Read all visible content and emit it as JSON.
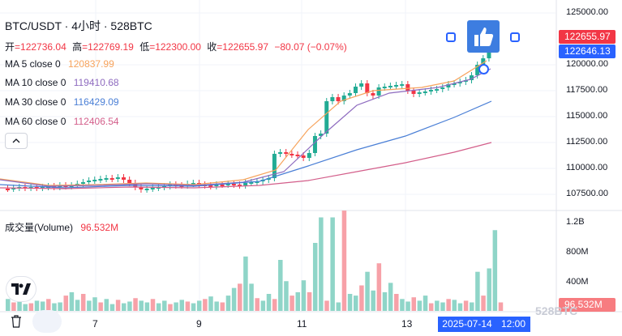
{
  "header": {
    "title": "BTC/USDT · 4小时 · 528BTC",
    "ohlc": [
      {
        "key": "开",
        "value": "=122736.04"
      },
      {
        "key": "高",
        "value": "=122769.19"
      },
      {
        "key": "低",
        "value": "=122300.00"
      },
      {
        "key": "收",
        "value": "=122655.97"
      },
      {
        "key": "",
        "value": "−80.07 (−0.07%)"
      }
    ]
  },
  "indicators": [
    {
      "label": "MA 5 close 0",
      "value": "120837.99",
      "color": "#f7a35c"
    },
    {
      "label": "MA 10 close 0",
      "value": "119410.68",
      "color": "#8e6bbf"
    },
    {
      "label": "MA 30 close 0",
      "value": "116429.09",
      "color": "#4a7fd6"
    },
    {
      "label": "MA 60 close 0",
      "value": "112406.54",
      "color": "#d35e8a"
    }
  ],
  "volume_legend": {
    "label": "成交量(Volume)",
    "value": "96.532M",
    "color": "#f23645"
  },
  "price_axis": [
    "125000.00",
    "120000.00",
    "117500.00",
    "115000.00",
    "112500.00",
    "110000.00",
    "107500.00"
  ],
  "price_tags": [
    {
      "value": "122655.97",
      "color": "#f23645"
    },
    {
      "value": "122646.13",
      "color": "#2962ff"
    }
  ],
  "volume_axis": [
    "1.2B",
    "800M",
    "400M"
  ],
  "volume_tag": {
    "value": "96.532M",
    "color": "#f77c80"
  },
  "time_axis": [
    "7",
    "9",
    "11",
    "13"
  ],
  "crosshair": {
    "date": "2025-07-14",
    "time": "12:00"
  },
  "colors": {
    "up": "#22ab94",
    "down": "#f23645",
    "vol_up": "#8fd5c8",
    "vol_down": "#f7a1a8",
    "grid": "#f0f3fa"
  },
  "icons": {
    "collapse": "chevron-up-icon",
    "logo": "tradingview-logo",
    "trash": "trash-icon",
    "thumbs": "thumbs-up-icon"
  },
  "watermark": "528BTC"
}
